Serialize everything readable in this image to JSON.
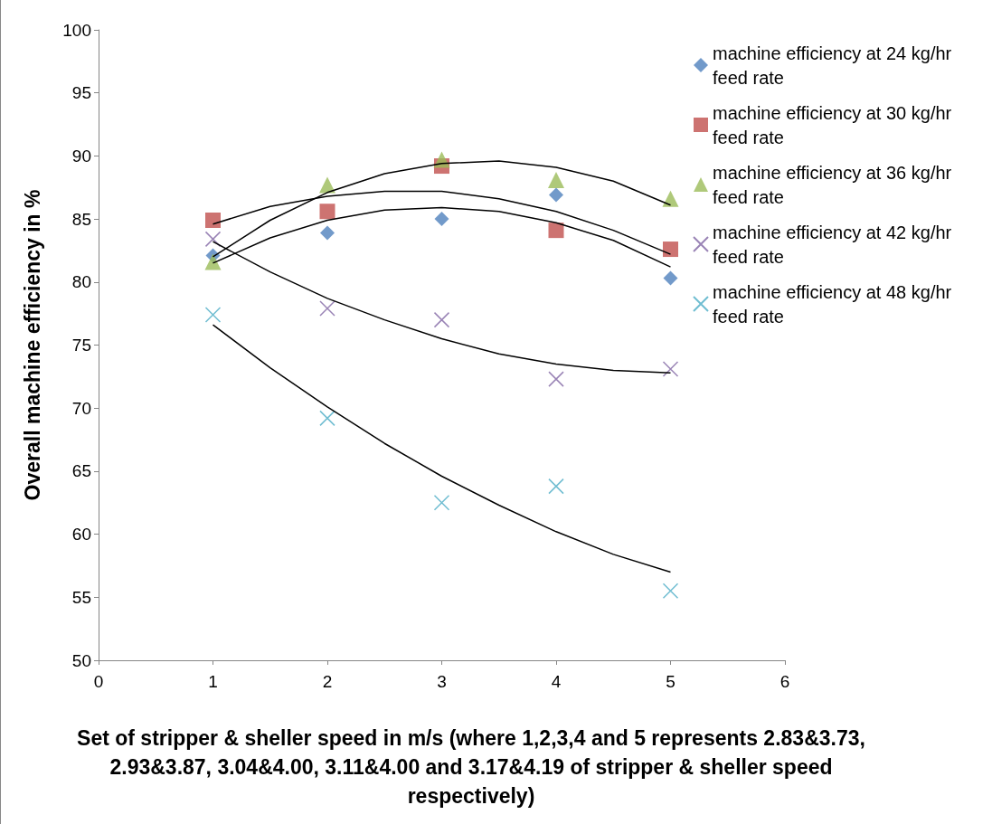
{
  "chart_data": {
    "type": "scatter",
    "xlabel": "Set of stripper & sheller speed in m/s (where 1,2,3,4 and 5 represents 2.83&3.73, 2.93&3.87, 3.04&4.00, 3.11&4.00 and 3.17&4.19 of  stripper & sheller speed respectively)",
    "ylabel": "Overall machine efficiency in %",
    "x": [
      1,
      2,
      3,
      4,
      5
    ],
    "series": [
      {
        "name": "machine efficiency at 24 kg/hr feed rate",
        "color": "#4f81bd",
        "marker": "diamond",
        "values": [
          82.1,
          83.9,
          85.0,
          86.9,
          80.3
        ]
      },
      {
        "name": "machine efficiency at 30 kg/hr feed rate",
        "color": "#c0504d",
        "marker": "square",
        "values": [
          84.9,
          85.6,
          89.2,
          84.1,
          82.6
        ]
      },
      {
        "name": "machine efficiency at 36 kg/hr feed rate",
        "color": "#9bbb59",
        "marker": "triangle",
        "values": [
          81.6,
          87.7,
          89.7,
          88.1,
          86.6
        ]
      },
      {
        "name": "machine efficiency at 42 kg/hr feed rate",
        "color": "#8064a2",
        "marker": "cross",
        "values": [
          83.4,
          77.9,
          77.0,
          72.3,
          73.1
        ]
      },
      {
        "name": "machine efficiency at 48 kg/hr feed rate",
        "color": "#4bacc6",
        "marker": "cross",
        "values": [
          77.4,
          69.2,
          62.5,
          63.8,
          55.5
        ]
      },
      {
        "type": "line",
        "color": "#000000",
        "marker": "none",
        "x": [
          1,
          1.5,
          2,
          2.5,
          3,
          3.5,
          4,
          4.5,
          5
        ],
        "values": [
          81.5,
          83.5,
          84.9,
          85.7,
          85.9,
          85.6,
          84.7,
          83.3,
          81.2
        ]
      },
      {
        "type": "line",
        "color": "#000000",
        "marker": "none",
        "x": [
          1,
          1.5,
          2,
          2.5,
          3,
          3.5,
          4,
          4.5,
          5
        ],
        "values": [
          84.6,
          86.0,
          86.8,
          87.2,
          87.2,
          86.6,
          85.6,
          84.1,
          82.2
        ]
      },
      {
        "type": "line",
        "color": "#000000",
        "marker": "none",
        "x": [
          1,
          1.5,
          2,
          2.5,
          3,
          3.5,
          4,
          4.5,
          5
        ],
        "values": [
          82.0,
          84.9,
          87.1,
          88.6,
          89.4,
          89.6,
          89.1,
          88.0,
          86.1
        ]
      },
      {
        "type": "line",
        "color": "#000000",
        "marker": "none",
        "x": [
          1,
          1.5,
          2,
          2.5,
          3,
          3.5,
          4,
          4.5,
          5
        ],
        "values": [
          83.2,
          80.8,
          78.7,
          77.0,
          75.5,
          74.3,
          73.5,
          73.0,
          72.8
        ]
      },
      {
        "type": "line",
        "color": "#000000",
        "marker": "none",
        "x": [
          1,
          1.5,
          2,
          2.5,
          3,
          3.5,
          4,
          4.5,
          5
        ],
        "values": [
          76.6,
          73.2,
          70.1,
          67.2,
          64.6,
          62.3,
          60.2,
          58.4,
          57.0
        ]
      }
    ],
    "xlim": [
      0,
      6
    ],
    "xticks": [
      0,
      1,
      2,
      3,
      4,
      5,
      6
    ],
    "ylim": [
      50,
      100
    ],
    "yticks": [
      50,
      55,
      60,
      65,
      70,
      75,
      80,
      85,
      90,
      95,
      100
    ],
    "grid": false,
    "legend": "top right"
  }
}
